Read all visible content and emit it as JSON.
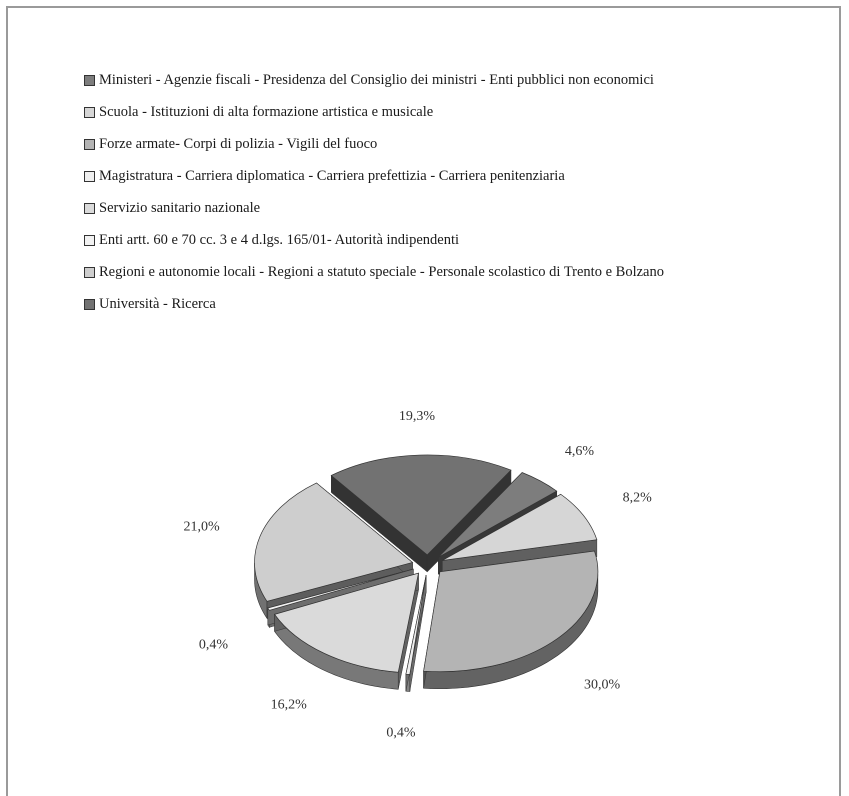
{
  "chart_data": {
    "type": "pie",
    "title": "",
    "three_d": true,
    "exploded": true,
    "legend_position": "top",
    "series": [
      {
        "label": "Ministeri - Agenzie fiscali - Presidenza del Consiglio dei ministri - Enti pubblici non economici",
        "value": 4.6,
        "value_label": "4,6%",
        "color": "#7d7d7d"
      },
      {
        "label": "Scuola - Istituzioni di alta formazione artistica e musicale",
        "value": 8.2,
        "value_label": "8,2%",
        "color": "#d6d6d6"
      },
      {
        "label": "Forze armate- Corpi di polizia - Vigili del fuoco",
        "value": 30.0,
        "value_label": "30,0%",
        "color": "#b4b4b4"
      },
      {
        "label": "Magistratura - Carriera diplomatica - Carriera prefettizia - Carriera penitenziaria",
        "value": 0.4,
        "value_label": "0,4%",
        "color": "#efefef"
      },
      {
        "label": "Servizio sanitario nazionale",
        "value": 16.2,
        "value_label": "16,2%",
        "color": "#dadada"
      },
      {
        "label": "Enti artt. 60 e 70 cc. 3 e 4 d.lgs. 165/01- Autorità indipendenti",
        "value": 0.4,
        "value_label": "0,4%",
        "color": "#f2f2f2"
      },
      {
        "label": "Regioni e autonomie locali - Regioni a statuto speciale - Personale scolastico di Trento e Bolzano",
        "value": 21.0,
        "value_label": "21,0%",
        "color": "#cecece"
      },
      {
        "label": "Università - Ricerca",
        "value": 19.3,
        "value_label": "19,3%",
        "color": "#727272"
      }
    ]
  }
}
